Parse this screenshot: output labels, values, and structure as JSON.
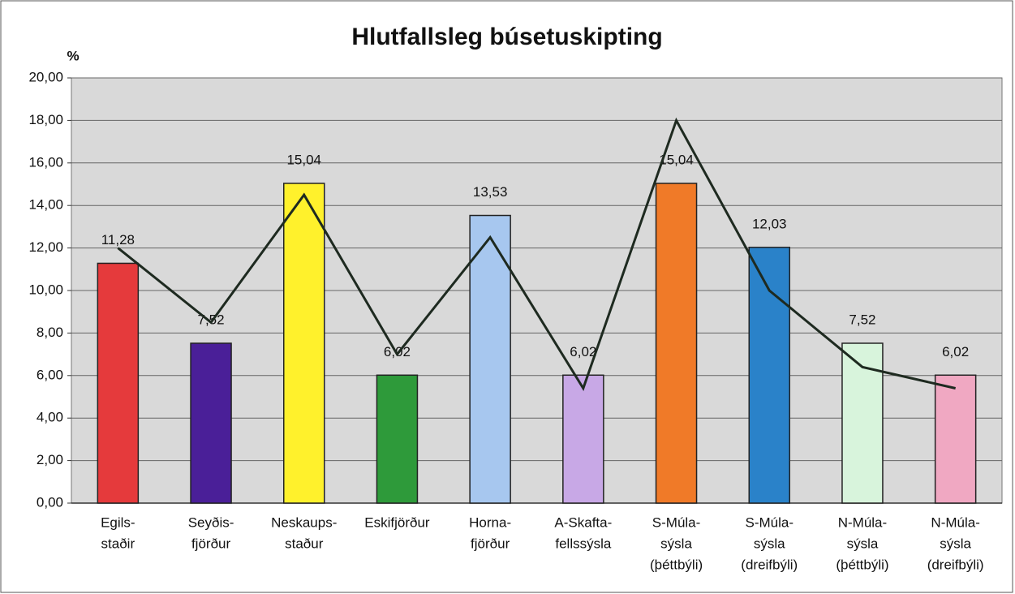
{
  "chart_data": {
    "type": "bar",
    "title": "Hlutfallsleg búsetuskipting",
    "y_label": "%",
    "categories": [
      [
        "Egils-",
        "staðir"
      ],
      [
        "Seyðis-",
        "fjörður"
      ],
      [
        "Neskaups-",
        "staður"
      ],
      [
        "Eskifjörður"
      ],
      [
        "Horna-",
        "fjörður"
      ],
      [
        "A-Skafta-",
        "fellssýsla"
      ],
      [
        "S-Múla-",
        "sýsla",
        "(þéttbýli)"
      ],
      [
        "S-Múla-",
        "sýsla",
        "(dreifbýli)"
      ],
      [
        "N-Múla-",
        "sýsla",
        "(þéttbýli)"
      ],
      [
        "N-Múla-",
        "sýsla",
        "(dreifbýli)"
      ]
    ],
    "series": [
      {
        "type": "bar",
        "values": [
          11.28,
          7.52,
          15.04,
          6.02,
          13.53,
          6.02,
          15.04,
          12.03,
          7.52,
          6.02
        ],
        "value_labels": [
          "11,28",
          "7,52",
          "15,04",
          "6,02",
          "13,53",
          "6,02",
          "15,04",
          "12,03",
          "7,52",
          "6,02"
        ],
        "colors": [
          "#e53a3c",
          "#4a1f98",
          "#fff12c",
          "#2e9a3a",
          "#a7c7ef",
          "#c8a8e6",
          "#f07a28",
          "#2a82c9",
          "#d8f4dc",
          "#f0a8c2"
        ]
      },
      {
        "type": "line",
        "color": "#1e2a20",
        "values": [
          12.0,
          8.5,
          14.5,
          7.0,
          12.5,
          5.4,
          18.0,
          10.0,
          6.4,
          5.4
        ]
      }
    ],
    "ylim": [
      0,
      20
    ],
    "yticks": [
      {
        "value": 0,
        "label": "0,00"
      },
      {
        "value": 2,
        "label": "2,00"
      },
      {
        "value": 4,
        "label": "4,00"
      },
      {
        "value": 6,
        "label": "6,00"
      },
      {
        "value": 8,
        "label": "8,00"
      },
      {
        "value": 10,
        "label": "10,00"
      },
      {
        "value": 12,
        "label": "12,00"
      },
      {
        "value": 14,
        "label": "14,00"
      },
      {
        "value": 16,
        "label": "16,00"
      },
      {
        "value": 18,
        "label": "18,00"
      },
      {
        "value": 20,
        "label": "20,00"
      }
    ],
    "grid": true
  }
}
